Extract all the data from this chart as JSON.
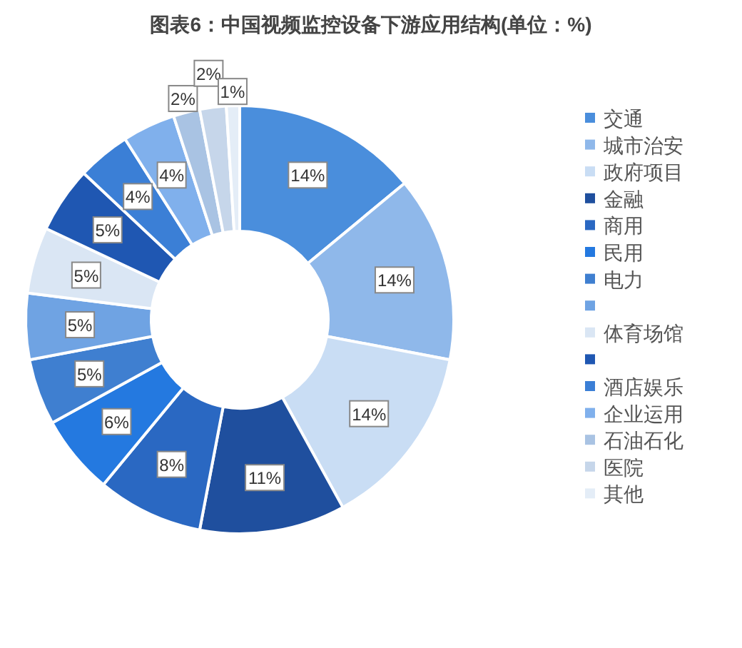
{
  "chart_data": {
    "type": "donut",
    "title": "图表6：中国视频监控设备下游应用结构(单位：%)",
    "categories": [
      "交通",
      "城市治安",
      "政府项目",
      "金融",
      "商用",
      "民用",
      "电力",
      null,
      "体育场馆",
      null,
      "酒店娱乐",
      "企业运用",
      "石油石化",
      "医院",
      "其他"
    ],
    "values": [
      14,
      14,
      14,
      11,
      8,
      6,
      5,
      5,
      5,
      5,
      4,
      4,
      2,
      2,
      1
    ],
    "value_labels": [
      "14%",
      "14%",
      "14%",
      "11%",
      "8%",
      "6%",
      "5%",
      "5%",
      "5%",
      "5%",
      "4%",
      "4%",
      "2%",
      "2%",
      "1%"
    ],
    "colors": [
      "#4a8edc",
      "#8fb8ea",
      "#c9ddf4",
      "#1f4f9e",
      "#2a68c2",
      "#2479e0",
      "#3f7fd0",
      "#6fa3e3",
      "#dae6f4",
      "#1f57b2",
      "#3b7fd6",
      "#80b0ec",
      "#a9c3e3",
      "#c6d6ea",
      "#e4edf7"
    ],
    "legend": "right"
  }
}
